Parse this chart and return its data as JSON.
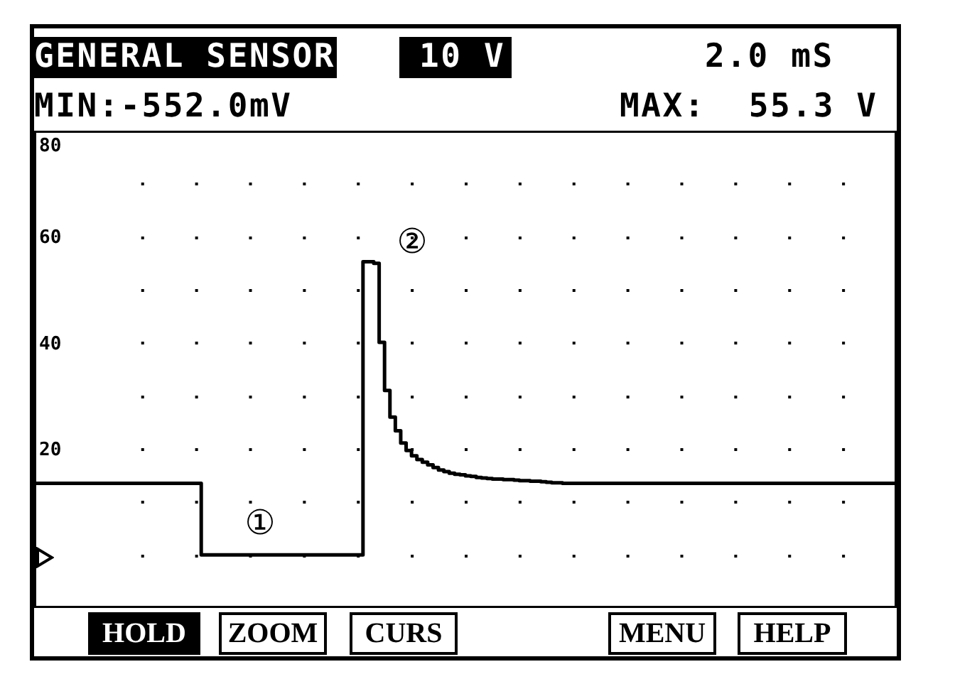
{
  "chart_data": {
    "type": "step",
    "title": "GENERAL SENSOR",
    "annotations": [
      "10 V",
      "2.0 mS",
      "MIN:-552.0mV",
      "MAX:  55.3 V",
      "①",
      "②",
      "HOLD",
      "ZOOM",
      "CURS",
      "MENU",
      "HELP"
    ],
    "categories": [
      null,
      null,
      null,
      null,
      null,
      null,
      null,
      null,
      null,
      null,
      null,
      null,
      null,
      null,
      null,
      null,
      null,
      null,
      null,
      null,
      null,
      null,
      null,
      null,
      null,
      null,
      null,
      null,
      null,
      null,
      null,
      null,
      null,
      null,
      null,
      null,
      null,
      null,
      null,
      null,
      null,
      null,
      null,
      null,
      null,
      null,
      null,
      null,
      null,
      null,
      null,
      null,
      null,
      null,
      null,
      null,
      null,
      null,
      null,
      null,
      null,
      null,
      null,
      null,
      null,
      null,
      null,
      null,
      null,
      null,
      null,
      null,
      null,
      null,
      null,
      null,
      null,
      null,
      null,
      null,
      null,
      null,
      null,
      null,
      null,
      null,
      null,
      null,
      null,
      null,
      null,
      null,
      null,
      null,
      null,
      null,
      null,
      null,
      null,
      null,
      null,
      null,
      null,
      null,
      null,
      null,
      null,
      null,
      null,
      null,
      null,
      null,
      null,
      null,
      null,
      null,
      null,
      null,
      null,
      null,
      null,
      null,
      null,
      null,
      null,
      null,
      null,
      null,
      null,
      null,
      null,
      null,
      null,
      null,
      null,
      null,
      null,
      null,
      null,
      null,
      null,
      null,
      null,
      null,
      null,
      null,
      null,
      null,
      null,
      null,
      null,
      null,
      null,
      null,
      null,
      null,
      null,
      null,
      null,
      null,
      null
    ],
    "series": [
      {
        "color": "#000000",
        "values": [
          13.5,
          13.5,
          13.5,
          13.5,
          13.5,
          13.5,
          13.5,
          13.5,
          13.5,
          13.5,
          13.5,
          13.5,
          13.5,
          13.5,
          13.5,
          13.5,
          13.5,
          13.5,
          13.5,
          13.5,
          13.5,
          13.5,
          13.5,
          13.5,
          13.5,
          13.5,
          13.5,
          13.5,
          13.5,
          13.5,
          13.5,
          0,
          0,
          0,
          0,
          0,
          0,
          0,
          0,
          0,
          0,
          0,
          0,
          0,
          0,
          0,
          0,
          0,
          0,
          0,
          0,
          0,
          0,
          0,
          0,
          0,
          0,
          0,
          0,
          0,
          0,
          55.3,
          55.3,
          55.0,
          40.1,
          31,
          26,
          23.4,
          21.1,
          19.7,
          18.7,
          18.0,
          17.5,
          17.0,
          16.5,
          16.0,
          15.7,
          15.4,
          15.2,
          15.1,
          14.9,
          14.8,
          14.6,
          14.5,
          14.4,
          14.3,
          14.3,
          14.2,
          14.2,
          14.1,
          14.0,
          14.0,
          13.9,
          13.9,
          13.8,
          13.7,
          13.6,
          13.6,
          13.5,
          13.5,
          13.5,
          13.5,
          13.5,
          13.5,
          13.5,
          13.5,
          13.5,
          13.5,
          13.5,
          13.5,
          13.5,
          13.5,
          13.5,
          13.5,
          13.5,
          13.5,
          13.5,
          13.5,
          13.5,
          13.5,
          13.5,
          13.5,
          13.5,
          13.5,
          13.5,
          13.5,
          13.5,
          13.5,
          13.5,
          13.5,
          13.5,
          13.5,
          13.5,
          13.5,
          13.5,
          13.5,
          13.5,
          13.5,
          13.5,
          13.5,
          13.5,
          13.5,
          13.5,
          13.5,
          13.5,
          13.5,
          13.5,
          13.5,
          13.5,
          13.5,
          13.5,
          13.5,
          13.5,
          13.5,
          13.5,
          13.5,
          13.5,
          13.5,
          13.5,
          13.5,
          13.5
        ]
      }
    ],
    "ylim": [
      -10,
      80
    ],
    "yticks": [
      {
        "value": 0,
        "label": null
      },
      {
        "value": 10,
        "label": null
      },
      20,
      {
        "value": 30,
        "label": null
      },
      40,
      {
        "value": 50,
        "label": null
      },
      60,
      {
        "value": 70,
        "label": null
      },
      80
    ],
    "grid": "y",
    "tick_labels": "y"
  }
}
